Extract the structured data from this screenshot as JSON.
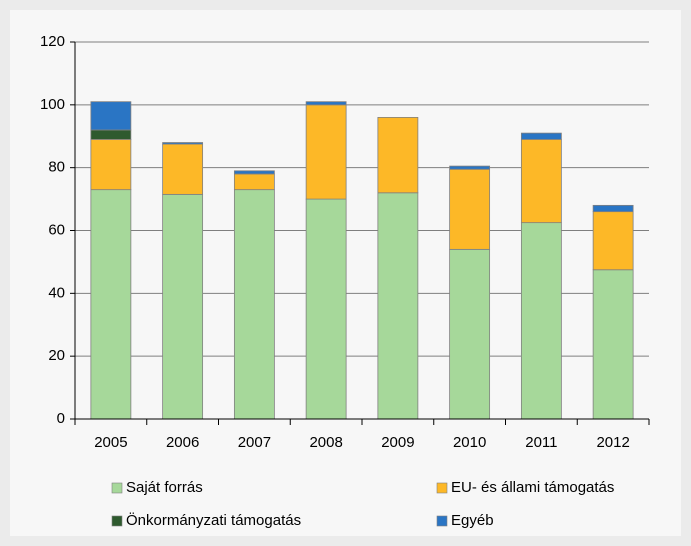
{
  "chart_data": {
    "type": "stacked_bar",
    "categories": [
      "2005",
      "2006",
      "2007",
      "2008",
      "2009",
      "2010",
      "2011",
      "2012"
    ],
    "series": [
      {
        "name": "Saját forrás",
        "color": "#a6d89a",
        "values": [
          73,
          71.5,
          73,
          70,
          72,
          54,
          62.5,
          47.5
        ]
      },
      {
        "name": "EU- és állami támogatás",
        "color": "#fdb827",
        "values": [
          16,
          16,
          5,
          30,
          24,
          25.5,
          26.5,
          18.5
        ]
      },
      {
        "name": "Önkormányzati támogatás",
        "color": "#2e5a2e",
        "values": [
          3,
          0,
          0,
          0,
          0,
          0,
          0,
          0
        ]
      },
      {
        "name": "Egyéb",
        "color": "#2a75c4",
        "values": [
          9,
          0.5,
          1,
          1,
          0,
          1,
          2,
          2
        ]
      }
    ],
    "ylim": [
      0,
      120
    ],
    "yticks": [
      0,
      20,
      40,
      60,
      80,
      100,
      120
    ],
    "grid": true
  }
}
